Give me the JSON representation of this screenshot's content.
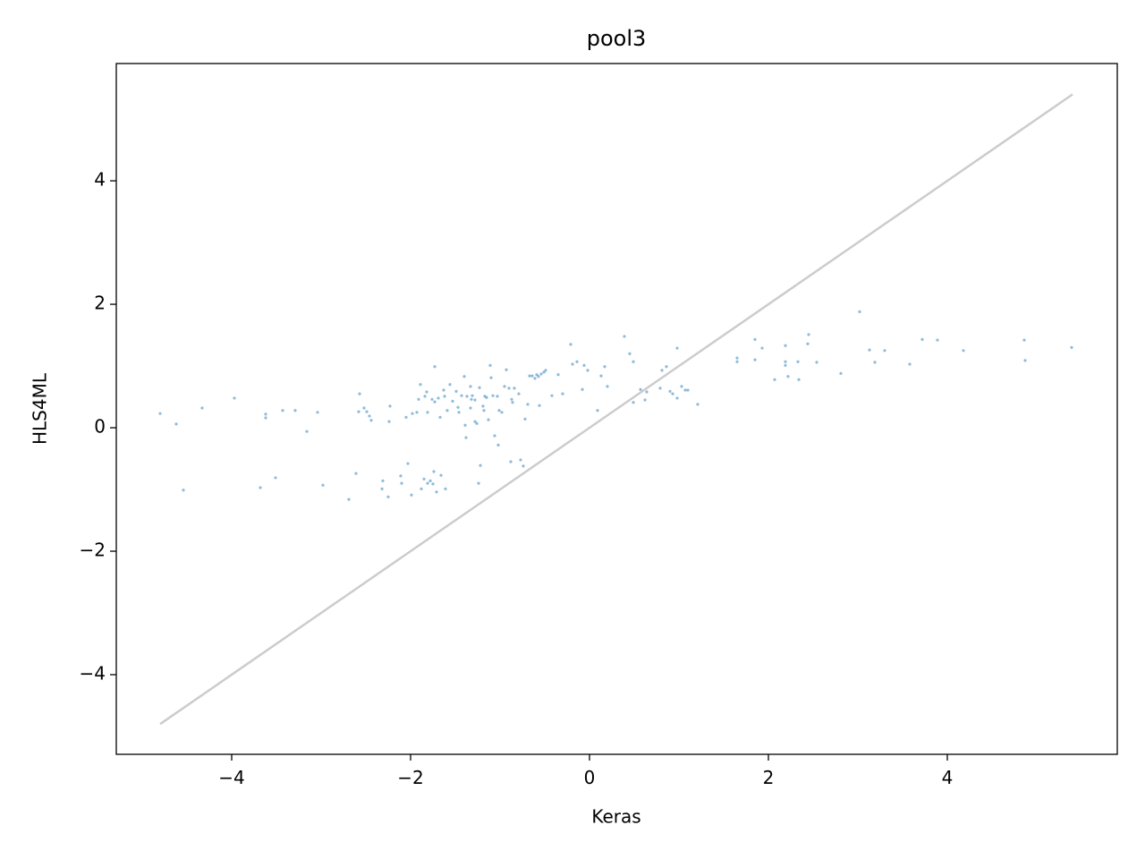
{
  "chart_data": {
    "type": "scatter",
    "title": "pool3",
    "xlabel": "Keras",
    "ylabel": "HLS4ML",
    "color": "#1f77b4",
    "xlim": [
      -5.29,
      5.9
    ],
    "ylim": [
      -5.29,
      5.9
    ],
    "xticks": [
      {
        "value": -4,
        "label": "−4"
      },
      {
        "value": -2,
        "label": "−2"
      },
      0,
      2,
      4
    ],
    "yticks": [
      {
        "value": -4,
        "label": "−4"
      },
      {
        "value": -2,
        "label": "−2"
      },
      0,
      2,
      4
    ],
    "line": {
      "x": [
        -4.8,
        5.4
      ],
      "y": [
        -4.8,
        5.4
      ],
      "color": "#cccccc"
    },
    "x": [
      -4.8,
      -4.62,
      -4.54,
      -4.33,
      -3.97,
      -3.68,
      -3.62,
      -3.62,
      -3.51,
      -3.43,
      -3.29,
      -3.16,
      -3.04,
      -2.98,
      -2.69,
      -2.61,
      -2.57,
      -2.58,
      -2.52,
      -2.49,
      -2.46,
      -2.44,
      -2.32,
      -2.31,
      -2.25,
      -2.23,
      -2.24,
      -2.11,
      -2.1,
      -2.05,
      -2.03,
      -1.99,
      -1.98,
      -1.93,
      -1.91,
      -1.89,
      -1.88,
      -1.85,
      -1.84,
      -1.82,
      -1.81,
      -1.81,
      -1.78,
      -1.75,
      -1.74,
      -1.76,
      -1.73,
      -1.73,
      -1.69,
      -1.71,
      -1.67,
      -1.63,
      -1.61,
      -1.66,
      -1.62,
      -1.59,
      -1.56,
      -1.53,
      -1.49,
      -1.47,
      -1.46,
      -1.43,
      -1.4,
      -1.39,
      -1.38,
      -1.37,
      -1.33,
      -1.33,
      -1.32,
      -1.31,
      -1.28,
      -1.28,
      -1.26,
      -1.24,
      -1.23,
      -1.22,
      -1.19,
      -1.18,
      -1.17,
      -1.15,
      -1.13,
      -1.11,
      -1.1,
      -1.08,
      -1.06,
      -1.03,
      -1.02,
      -1.01,
      -0.98,
      -0.95,
      -0.93,
      -0.9,
      -0.88,
      -0.87,
      -0.86,
      -0.84,
      -0.79,
      -0.77,
      -0.74,
      -0.72,
      -0.69,
      -0.67,
      -0.64,
      -0.61,
      -0.59,
      -0.57,
      -0.56,
      -0.54,
      -0.51,
      -0.49,
      -0.42,
      -0.35,
      -0.3,
      -0.21,
      -0.19,
      -0.14,
      -0.08,
      -0.06,
      -0.02,
      0.09,
      0.13,
      0.17,
      0.2,
      0.39,
      0.45,
      0.49,
      0.49,
      0.57,
      0.62,
      0.64,
      0.79,
      0.81,
      0.86,
      0.9,
      0.93,
      0.98,
      0.98,
      1.03,
      1.07,
      1.1,
      1.21,
      1.65,
      1.65,
      1.85,
      1.85,
      1.93,
      2.07,
      2.19,
      2.19,
      2.19,
      2.22,
      2.33,
      2.34,
      2.44,
      2.45,
      2.54,
      2.81,
      3.02,
      3.13,
      3.19,
      3.3,
      3.58,
      3.72,
      3.89,
      4.18,
      4.86,
      4.87,
      5.39
    ],
    "y": [
      0.23,
      0.06,
      -1.01,
      0.32,
      0.48,
      -0.97,
      0.22,
      0.16,
      -0.81,
      0.28,
      0.28,
      -0.06,
      0.25,
      -0.93,
      -1.16,
      -0.74,
      0.55,
      0.26,
      0.32,
      0.26,
      0.19,
      0.12,
      -0.99,
      -0.86,
      -1.12,
      0.35,
      0.1,
      -0.78,
      -0.9,
      0.17,
      -0.58,
      -1.09,
      0.23,
      0.25,
      0.46,
      0.7,
      -0.99,
      -0.83,
      0.51,
      0.58,
      0.25,
      -0.9,
      -0.86,
      -0.91,
      -0.71,
      0.46,
      0.99,
      0.42,
      0.48,
      -1.04,
      0.17,
      0.61,
      -0.99,
      -0.77,
      0.51,
      0.28,
      0.7,
      0.43,
      0.59,
      0.33,
      0.25,
      0.52,
      0.83,
      0.04,
      -0.16,
      0.51,
      0.67,
      0.32,
      0.46,
      0.52,
      0.1,
      0.45,
      0.07,
      -0.9,
      0.65,
      -0.61,
      0.35,
      0.28,
      0.51,
      0.49,
      0.13,
      1.01,
      0.81,
      0.52,
      -0.13,
      0.51,
      -0.28,
      0.28,
      0.25,
      0.67,
      0.94,
      0.64,
      -0.55,
      0.46,
      0.41,
      0.64,
      0.55,
      -0.52,
      -0.62,
      0.14,
      0.38,
      0.84,
      0.84,
      0.8,
      0.86,
      0.83,
      0.36,
      0.87,
      0.9,
      0.93,
      0.52,
      0.86,
      0.55,
      1.35,
      1.03,
      1.07,
      0.62,
      1.01,
      0.93,
      0.28,
      0.84,
      0.99,
      0.67,
      1.48,
      1.2,
      1.07,
      0.41,
      0.62,
      0.45,
      0.58,
      0.64,
      0.93,
      0.99,
      0.59,
      0.55,
      1.29,
      0.48,
      0.67,
      0.61,
      0.61,
      0.38,
      1.13,
      1.07,
      1.1,
      1.43,
      1.29,
      0.78,
      1.33,
      1.07,
      1.01,
      0.83,
      1.07,
      0.78,
      1.36,
      1.51,
      1.06,
      0.88,
      1.88,
      1.26,
      1.06,
      1.25,
      1.03,
      1.43,
      1.42,
      1.25,
      1.42,
      1.09,
      1.3
    ]
  }
}
